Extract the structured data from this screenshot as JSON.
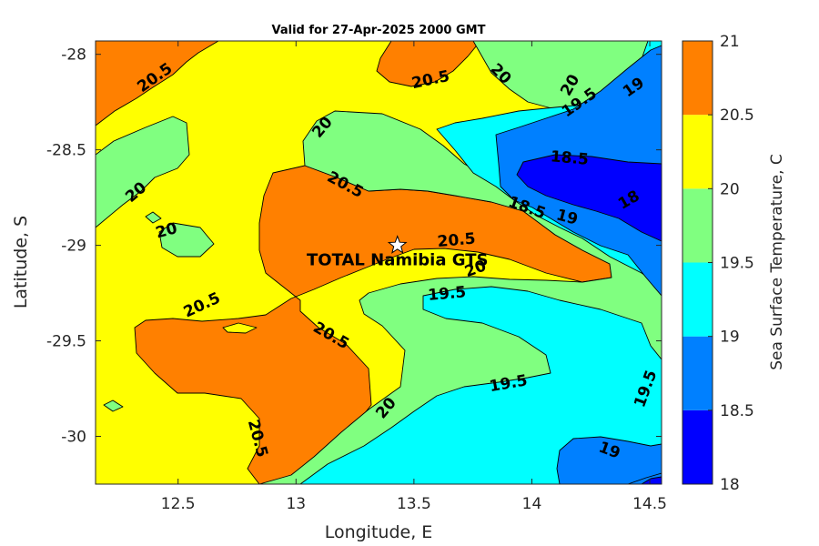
{
  "chart_data": {
    "type": "contour",
    "title": "Valid for 27-Apr-2025 2000 GMT",
    "xlabel": "Longitude, E",
    "ylabel": "Latitude, S",
    "xlim": [
      12.15,
      14.55
    ],
    "ylim": [
      -30.25,
      -27.93
    ],
    "x_ticks": [
      12.5,
      13,
      13.5,
      14,
      14.5
    ],
    "x_tick_labels": [
      "12.5",
      "13",
      "13.5",
      "14",
      "14.5"
    ],
    "y_ticks": [
      -28,
      -28.5,
      -29,
      -29.5,
      -30
    ],
    "y_tick_labels": [
      "-28",
      "-28.5",
      "-29",
      "-29.5",
      "-30"
    ],
    "colorbar": {
      "label": "Sea Surface Temperature, C",
      "levels": [
        18,
        18.5,
        19,
        19.5,
        20,
        20.5,
        21
      ],
      "level_labels": [
        "18",
        "18.5",
        "19",
        "19.5",
        "20",
        "20.5",
        "21"
      ],
      "colors": [
        "#0000ff",
        "#0080ff",
        "#00ffff",
        "#80ff80",
        "#ffff00",
        "#ff8000"
      ]
    },
    "marker": {
      "label": "TOTAL Namibia GTS",
      "lon": 13.43,
      "lat": -29.0,
      "symbol": "star",
      "color": "#ffffff"
    },
    "contour_labels": [
      {
        "text": "20.5",
        "lon": 12.4,
        "lat": -28.12,
        "rot": -35
      },
      {
        "text": "20.5",
        "lon": 13.57,
        "lat": -28.13,
        "rot": -12
      },
      {
        "text": "20",
        "lon": 13.87,
        "lat": -28.1,
        "rot": 45
      },
      {
        "text": "20",
        "lon": 14.16,
        "lat": -28.16,
        "rot": -60
      },
      {
        "text": "19.5",
        "lon": 14.2,
        "lat": -28.25,
        "rot": -35
      },
      {
        "text": "19",
        "lon": 14.43,
        "lat": -28.17,
        "rot": -35
      },
      {
        "text": "20",
        "lon": 13.11,
        "lat": -28.38,
        "rot": -50
      },
      {
        "text": "18.5",
        "lon": 14.16,
        "lat": -28.54,
        "rot": 5
      },
      {
        "text": "20.5",
        "lon": 13.21,
        "lat": -28.68,
        "rot": 28
      },
      {
        "text": "20",
        "lon": 12.32,
        "lat": -28.72,
        "rot": -40
      },
      {
        "text": "18",
        "lon": 14.41,
        "lat": -28.76,
        "rot": -30
      },
      {
        "text": "18.5",
        "lon": 13.98,
        "lat": -28.8,
        "rot": 20
      },
      {
        "text": "19",
        "lon": 14.15,
        "lat": -28.85,
        "rot": 15
      },
      {
        "text": "20",
        "lon": 12.45,
        "lat": -28.92,
        "rot": -15
      },
      {
        "text": "20.5",
        "lon": 13.68,
        "lat": -28.97,
        "rot": -5
      },
      {
        "text": "20",
        "lon": 13.76,
        "lat": -29.12,
        "rot": -20
      },
      {
        "text": "19.5",
        "lon": 13.64,
        "lat": -29.25,
        "rot": -5
      },
      {
        "text": "20.5",
        "lon": 12.6,
        "lat": -29.31,
        "rot": -25
      },
      {
        "text": "20.5",
        "lon": 13.15,
        "lat": -29.47,
        "rot": 30
      },
      {
        "text": "19.5",
        "lon": 13.9,
        "lat": -29.72,
        "rot": -10
      },
      {
        "text": "19.5",
        "lon": 14.48,
        "lat": -29.75,
        "rot": -70
      },
      {
        "text": "20",
        "lon": 13.38,
        "lat": -29.85,
        "rot": -50
      },
      {
        "text": "20.5",
        "lon": 12.84,
        "lat": -30.01,
        "rot": 75
      },
      {
        "text": "19",
        "lon": 14.33,
        "lat": -30.07,
        "rot": 20
      }
    ],
    "colorbar_position": "right",
    "grid": false
  }
}
